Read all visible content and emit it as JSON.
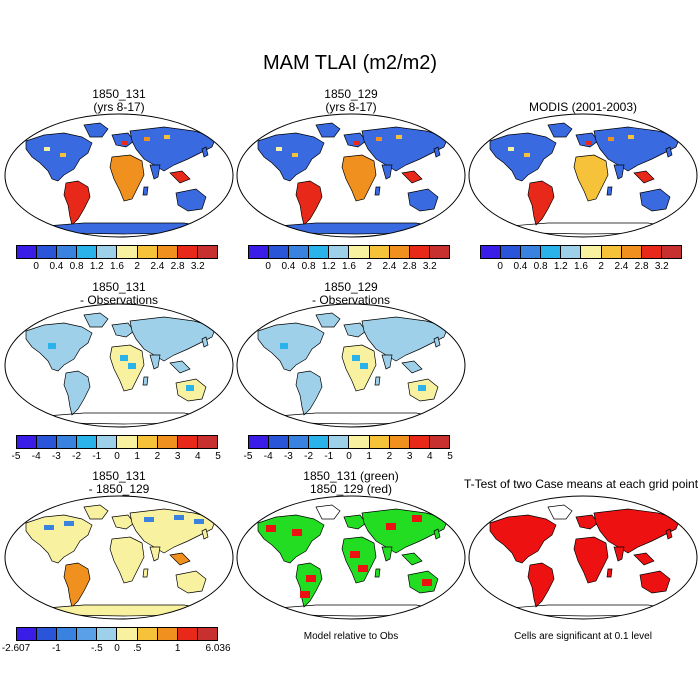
{
  "title": "MAM TLAI (m2/m2)",
  "panels": [
    {
      "line1": "1850_131",
      "line2": "(yrs 8-17)",
      "type": "model"
    },
    {
      "line1": "1850_129",
      "line2": "(yrs 8-17)",
      "type": "model"
    },
    {
      "line1": "MODIS (2001-2003)",
      "line2": "",
      "type": "obs"
    },
    {
      "line1": "1850_131",
      "line2": "- Observations",
      "type": "diff"
    },
    {
      "line1": "1850_129",
      "line2": "- Observations",
      "type": "diff"
    },
    {
      "line1": "1850_131",
      "line2": "- 1850_129",
      "type": "casediff"
    },
    {
      "line1": "1850_131 (green)",
      "line2": "1850_129 (red)",
      "type": "compare"
    },
    {
      "line1": "T-Test of two Case means at each grid point",
      "line2": "",
      "type": "ttest"
    }
  ],
  "colorbars": {
    "abs": {
      "colors": [
        "#3a1ee8",
        "#2a55d8",
        "#3a82e0",
        "#2ab2ea",
        "#9fd0ea",
        "#f8f1a0",
        "#f6c23a",
        "#f0901e",
        "#e82818",
        "#c83030"
      ],
      "labels": [
        "0",
        "0.4",
        "0.8",
        "1.2",
        "1.6",
        "2",
        "2.4",
        "2.8",
        "3.2"
      ]
    },
    "diff": {
      "colors": [
        "#3a1ee8",
        "#2a55d8",
        "#3a82e0",
        "#2ab2ea",
        "#9fd0ea",
        "#f8f1a0",
        "#f6c23a",
        "#f0901e",
        "#e82818",
        "#c83030"
      ],
      "labels": [
        "-5",
        "-4",
        "-3",
        "-2",
        "-1",
        "0",
        "1",
        "2",
        "3",
        "4",
        "5"
      ]
    },
    "casediff": {
      "colors": [
        "#3a1ee8",
        "#2a55d8",
        "#3a82e0",
        "#5aa0e8",
        "#9fd0ea",
        "#f8f1a0",
        "#f6c23a",
        "#f0901e",
        "#e82818",
        "#c83030"
      ],
      "labels": [
        "-2.607",
        "-1",
        "-.5",
        "0",
        ".5",
        "1",
        "6.036"
      ]
    }
  },
  "notes": {
    "model_relative": "Model relative to Obs",
    "significance": "Cells are significant at 0.1 level"
  },
  "map_colors": {
    "ocean": "#ffffff",
    "low": "#3a6ae0",
    "mid": "#9fd0ea",
    "high": "#e82818",
    "green": "#22dd22",
    "red": "#ee1111",
    "pale": "#f8f1a0"
  }
}
